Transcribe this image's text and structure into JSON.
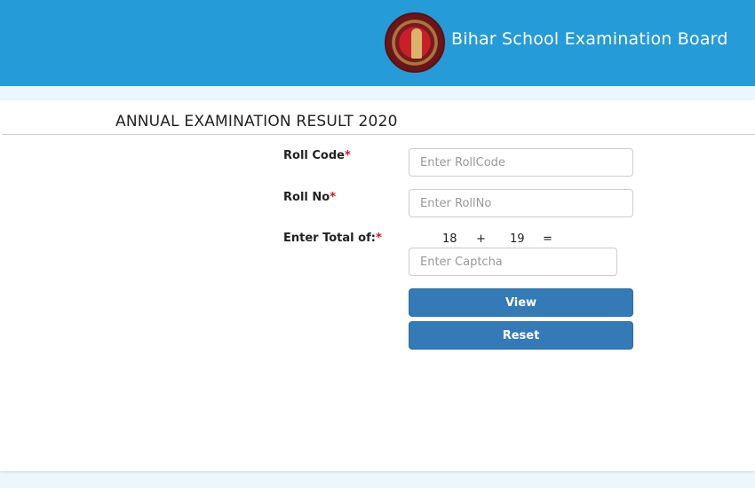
{
  "header": {
    "title": "Bihar School Examination Board",
    "logo": "bseb-seal-logo"
  },
  "page": {
    "title": "ANNUAL EXAMINATION RESULT 2020"
  },
  "form": {
    "roll_code": {
      "label": "Roll Code",
      "required": "*",
      "placeholder": "Enter RollCode",
      "value": ""
    },
    "roll_no": {
      "label": "Roll No",
      "required": "*",
      "placeholder": "Enter RollNo",
      "value": ""
    },
    "captcha": {
      "label": "Enter Total of:",
      "required": "*",
      "a": "18",
      "op": "+",
      "b": "19",
      "eq": "=",
      "placeholder": "Enter Captcha",
      "value": ""
    },
    "view_label": "View",
    "reset_label": "Reset"
  },
  "colors": {
    "header": "#259bd7",
    "button": "#337ab7",
    "required": "#e0101a"
  }
}
